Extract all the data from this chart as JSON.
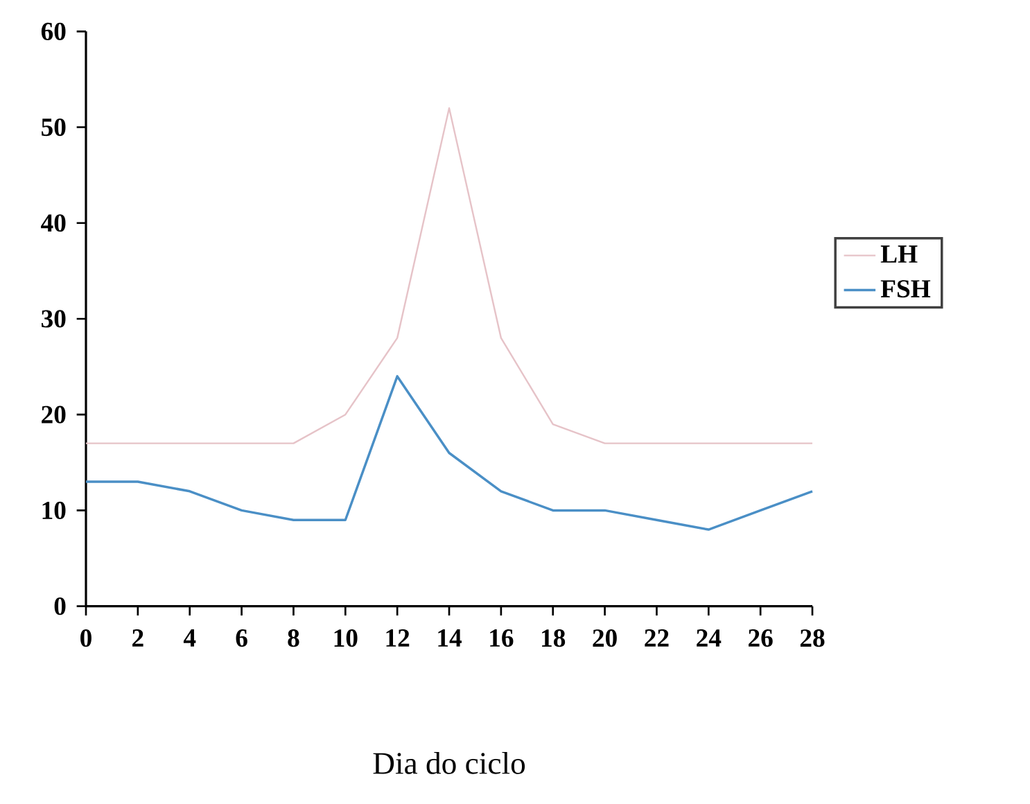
{
  "chart_data": {
    "type": "line",
    "xlabel": "Dia do ciclo",
    "x": [
      0,
      2,
      4,
      6,
      8,
      10,
      12,
      14,
      16,
      18,
      20,
      22,
      24,
      26,
      28
    ],
    "series": [
      {
        "name": "LH",
        "color": "#e6c3c8",
        "values": [
          17,
          17,
          17,
          17,
          17,
          20,
          28,
          52,
          28,
          19,
          17,
          17,
          17,
          17,
          17
        ]
      },
      {
        "name": "FSH",
        "color": "#4a8fc6",
        "values": [
          13,
          13,
          12,
          10,
          9,
          9,
          24,
          16,
          12,
          10,
          10,
          9,
          8,
          10,
          12
        ]
      }
    ],
    "xlim": [
      0,
      28
    ],
    "xticks": [
      0,
      2,
      4,
      6,
      8,
      10,
      12,
      14,
      16,
      18,
      20,
      22,
      24,
      26,
      28
    ],
    "ylim": [
      0,
      60
    ],
    "yticks": [
      0,
      10,
      20,
      30,
      40,
      50,
      60
    ],
    "legend": "right",
    "grid": false,
    "marker": "none",
    "line_style": "solid"
  }
}
